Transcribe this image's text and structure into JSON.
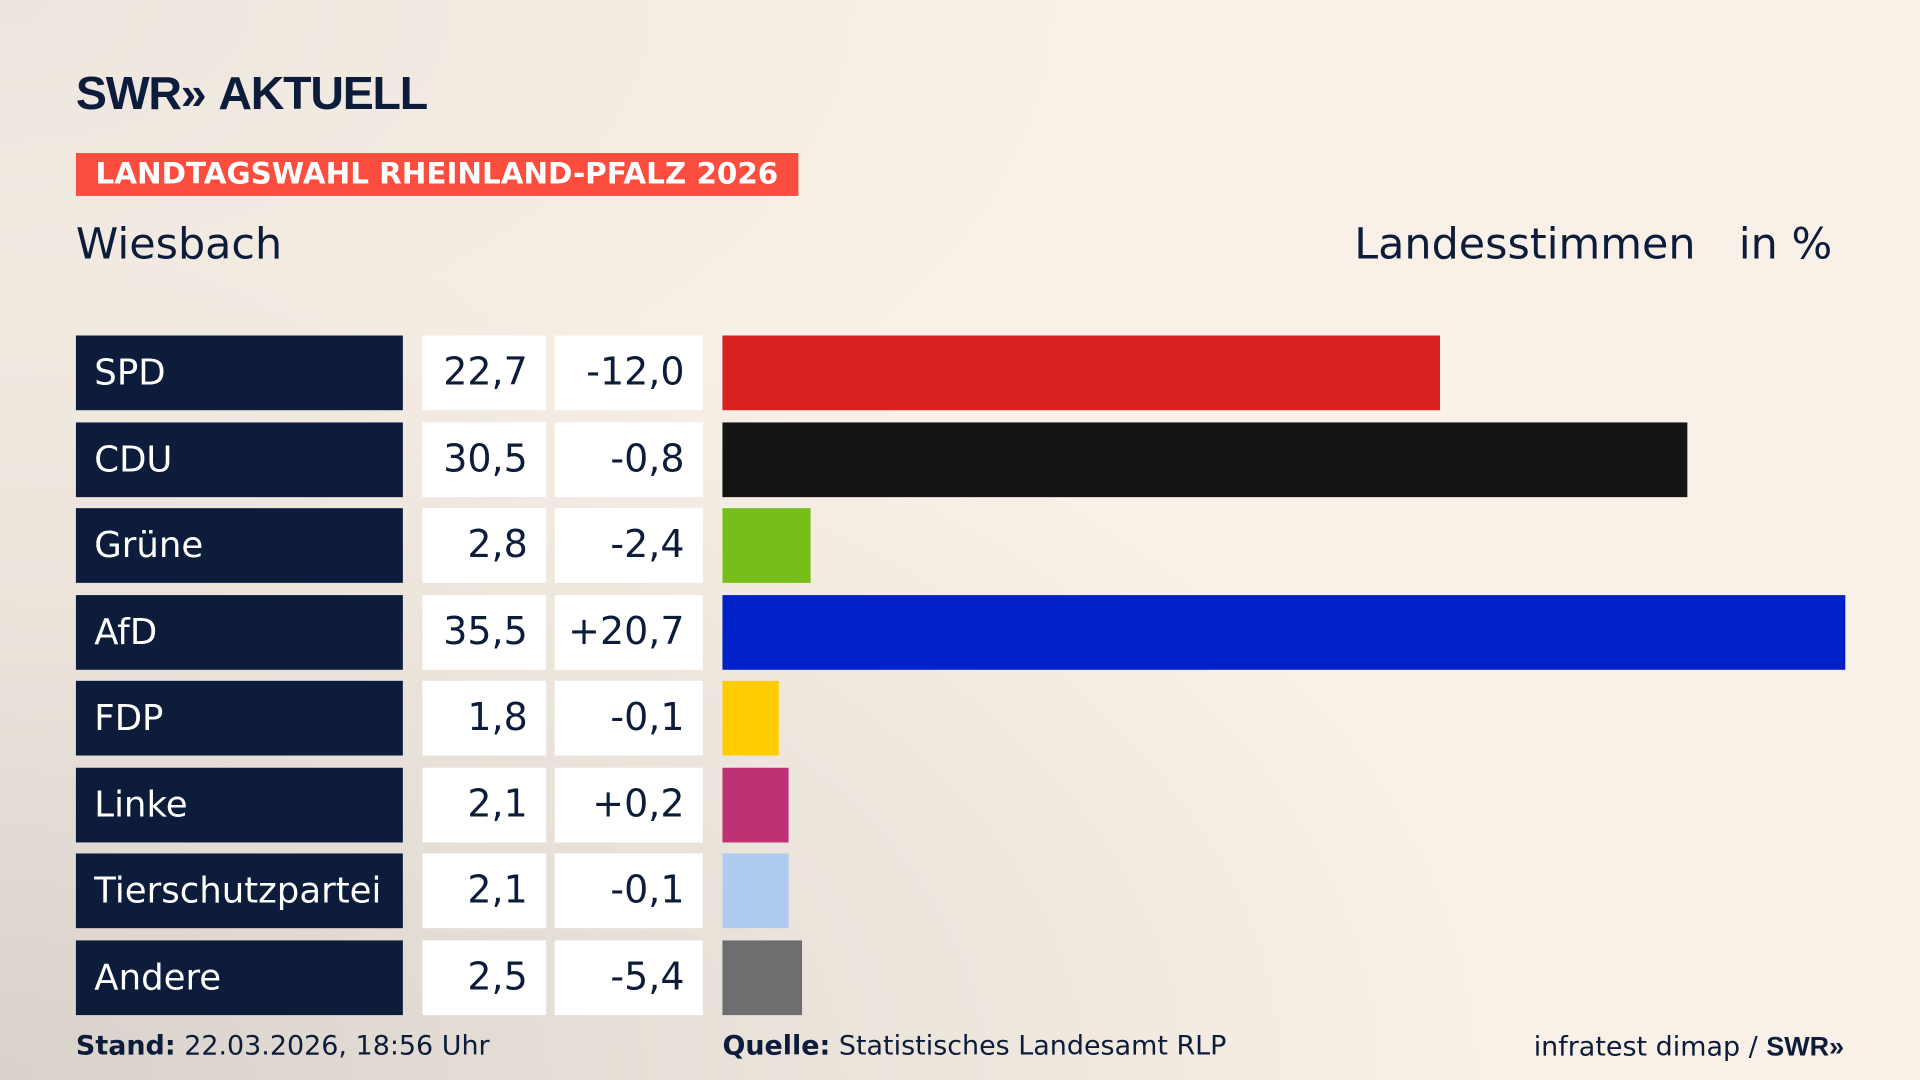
{
  "brand": {
    "logo": "SWR» AKTUELL"
  },
  "banner": "LANDTAGSWAHL RHEINLAND-PFALZ 2026",
  "place": "Wiesbach",
  "kind": "Landesstimmen",
  "unit": "in %",
  "chart_data": {
    "type": "bar",
    "orientation": "horizontal",
    "categories": [
      "SPD",
      "CDU",
      "Grüne",
      "AfD",
      "FDP",
      "Linke",
      "Tierschutzpartei",
      "Andere"
    ],
    "values": [
      22.7,
      30.5,
      2.8,
      35.5,
      1.8,
      2.1,
      2.1,
      2.5
    ],
    "value_labels": [
      "22,7",
      "30,5",
      "2,8",
      "35,5",
      "1,8",
      "2,1",
      "2,1",
      "2,5"
    ],
    "diff_labels": [
      "-12,0",
      "-0,8",
      "-2,4",
      "+20,7",
      "-0,1",
      "+0,2",
      "-0,1",
      "-5,4"
    ],
    "colors": [
      "#d91f20",
      "#141414",
      "#78be1a",
      "#0021c7",
      "#ffcc00",
      "#bd3175",
      "#aecbf0",
      "#6e6e70"
    ],
    "xlim": [
      0,
      35.5
    ]
  },
  "footer": {
    "stand_label": "Stand:",
    "stand_value": "22.03.2026, 18:56 Uhr",
    "source_label": "Quelle:",
    "source_value": "Statistisches Landesamt RLP",
    "credit": "infratest dimap / ",
    "credit_logo": "SWR»"
  }
}
